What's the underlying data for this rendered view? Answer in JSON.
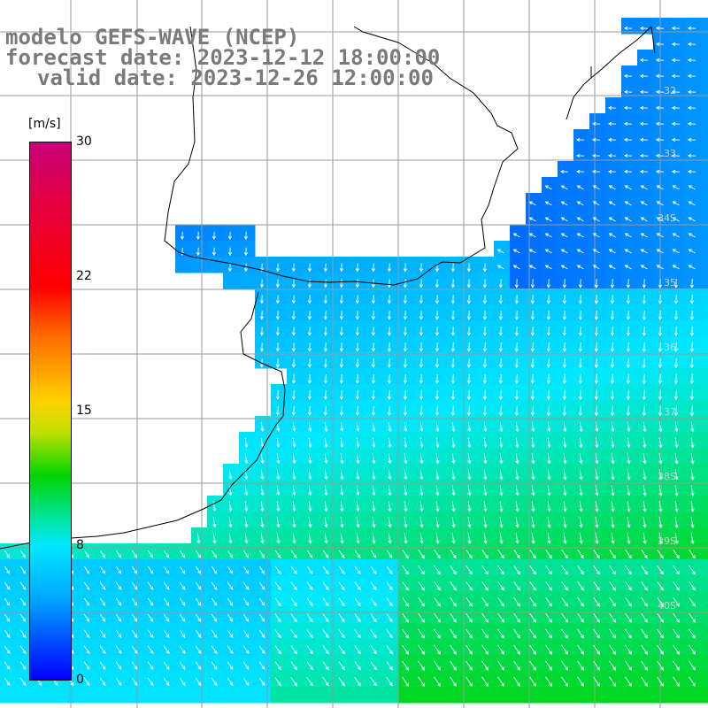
{
  "title": {
    "line1": "modelo GEFS-WAVE (NCEP)",
    "line2": "forecast date: 2023-12-12 18:00:00",
    "line3": "valid date: 2023-12-26 12:00:00"
  },
  "legend": {
    "unit": "[m/s]",
    "ticks": [
      {
        "label": "30",
        "value": 30
      },
      {
        "label": "22",
        "value": 22
      },
      {
        "label": "15",
        "value": 15
      },
      {
        "label": "8",
        "value": 8
      },
      {
        "label": "0",
        "value": 0
      }
    ],
    "min": 0,
    "max": 30
  },
  "map": {
    "latitude_labels": [
      "32",
      "33",
      "34S",
      "35",
      "36",
      "37",
      "38S",
      "39S",
      "40S"
    ],
    "colors": {
      "land": "#ffffff",
      "coast": "#000000",
      "grid": "#999999",
      "arrows": "#ffffff"
    }
  }
}
